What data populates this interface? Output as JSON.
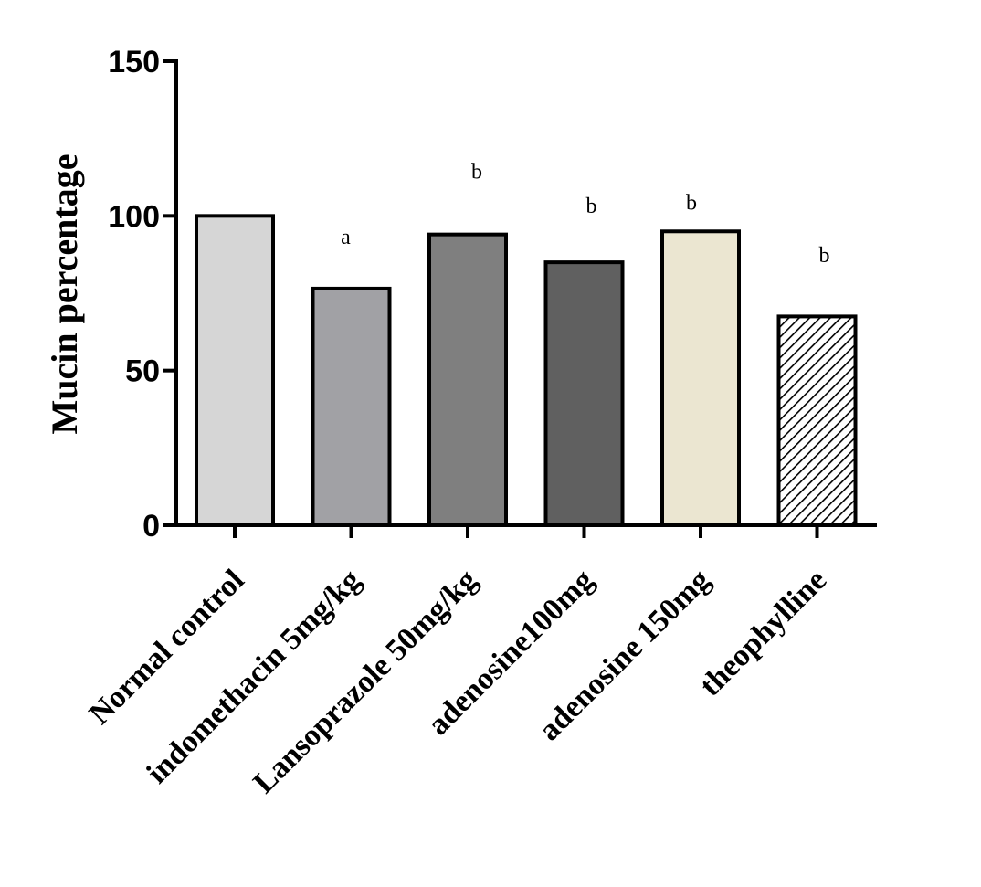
{
  "chart_data": {
    "type": "bar",
    "title": "",
    "xlabel": "",
    "ylabel": "Mucin percentage",
    "ylim": [
      0,
      150
    ],
    "yticks": [
      0,
      50,
      100,
      150
    ],
    "grid": false,
    "legend": "none",
    "categories": [
      "Normal control",
      "indomethacin 5mg/kg",
      "Lansoprazole 50mg/kg",
      "adenosine100mg",
      "adenosine 150mg",
      "theophylline"
    ],
    "values": [
      100,
      76.5,
      94,
      85,
      95,
      67.5
    ],
    "annotations": [
      "",
      "a",
      "b",
      "b",
      "b",
      "b"
    ],
    "annotation_values": [
      null,
      91,
      112,
      101,
      102,
      85
    ],
    "bar_colors": [
      "#d6d6d6",
      "#a1a1a5",
      "#7f7f7f",
      "#606060",
      "#ebe6d1",
      "hatch"
    ]
  }
}
